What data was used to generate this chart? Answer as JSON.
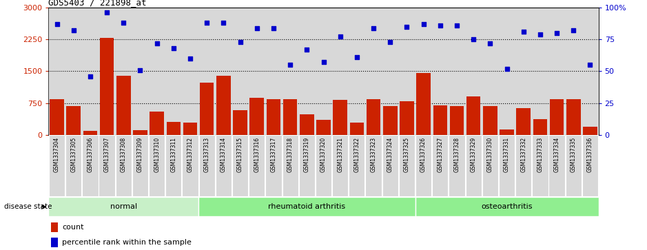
{
  "title": "GDS5403 / 221898_at",
  "samples": [
    "GSM1337304",
    "GSM1337305",
    "GSM1337306",
    "GSM1337307",
    "GSM1337308",
    "GSM1337309",
    "GSM1337310",
    "GSM1337311",
    "GSM1337312",
    "GSM1337313",
    "GSM1337314",
    "GSM1337315",
    "GSM1337316",
    "GSM1337317",
    "GSM1337318",
    "GSM1337319",
    "GSM1337320",
    "GSM1337321",
    "GSM1337322",
    "GSM1337323",
    "GSM1337324",
    "GSM1337325",
    "GSM1337326",
    "GSM1337327",
    "GSM1337328",
    "GSM1337329",
    "GSM1337330",
    "GSM1337331",
    "GSM1337332",
    "GSM1337333",
    "GSM1337334",
    "GSM1337335",
    "GSM1337336"
  ],
  "counts": [
    850,
    680,
    90,
    2280,
    1390,
    120,
    550,
    310,
    290,
    1230,
    1390,
    590,
    880,
    840,
    840,
    490,
    350,
    820,
    290,
    850,
    680,
    800,
    1460,
    690,
    680,
    900,
    680,
    130,
    640,
    370,
    840,
    840,
    190
  ],
  "percentiles": [
    87,
    82,
    46,
    96,
    88,
    51,
    72,
    68,
    60,
    88,
    88,
    73,
    84,
    84,
    55,
    67,
    57,
    77,
    61,
    84,
    73,
    85,
    87,
    86,
    86,
    75,
    72,
    52,
    81,
    79,
    80,
    82,
    55
  ],
  "bar_color": "#CC2200",
  "dot_color": "#0000CC",
  "left_ylim": [
    0,
    3000
  ],
  "right_ylim": [
    0,
    100
  ],
  "left_yticks": [
    0,
    750,
    1500,
    2250,
    3000
  ],
  "right_yticks": [
    0,
    25,
    50,
    75,
    100
  ],
  "grid_values": [
    750,
    1500,
    2250
  ],
  "plot_bg": "#D8D8D8",
  "xtick_bg": "#D0D0D0",
  "group_color_normal": "#C8F0C8",
  "group_color_ra": "#90EE90",
  "group_color_oa": "#90EE90",
  "group_defs": [
    {
      "label": "normal",
      "start": 0,
      "end": 9
    },
    {
      "label": "rheumatoid arthritis",
      "start": 9,
      "end": 22
    },
    {
      "label": "osteoarthritis",
      "start": 22,
      "end": 33
    }
  ],
  "disease_state_label": "disease state"
}
